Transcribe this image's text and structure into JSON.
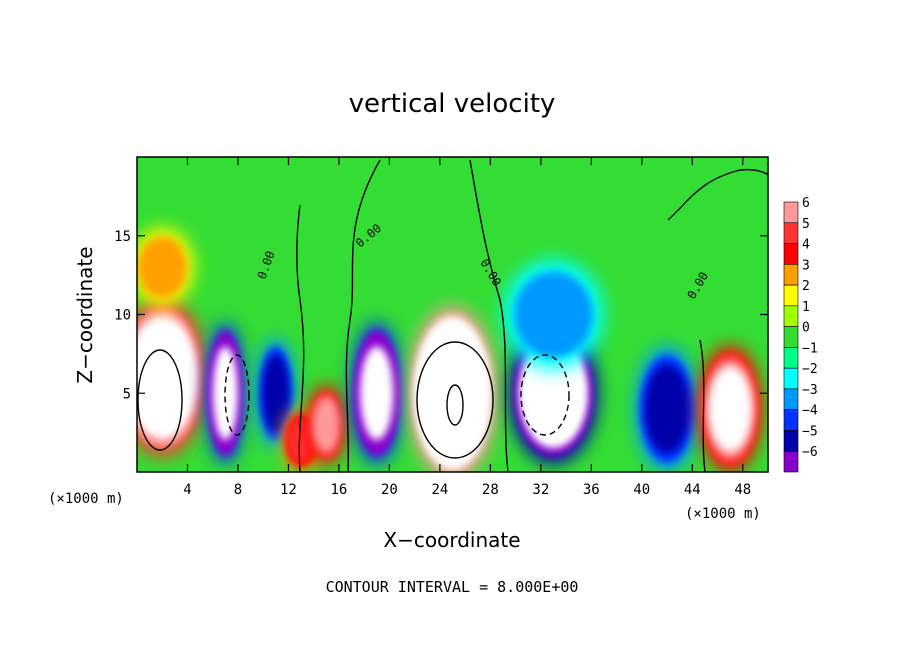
{
  "chart_data": {
    "type": "heatmap",
    "title": "vertical velocity",
    "xlabel": "X−coordinate",
    "ylabel": "Z−coordinate",
    "x_unit": "(×1000 m)",
    "y_unit": "(×1000 m)",
    "xlim": [
      0,
      50
    ],
    "ylim": [
      0,
      20
    ],
    "x_ticks": [
      4,
      8,
      12,
      16,
      20,
      24,
      28,
      32,
      36,
      40,
      44,
      48
    ],
    "y_ticks": [
      5,
      10,
      15
    ],
    "colorbar": {
      "levels": [
        6,
        5,
        4,
        3,
        2,
        1,
        0,
        -1,
        -2,
        -3,
        -4,
        -5,
        -6
      ],
      "labels": [
        "6",
        "5",
        "4",
        "3",
        "2",
        "1",
        "0",
        "−1",
        "−2",
        "−3",
        "−4",
        "−5",
        "−6"
      ],
      "colors": [
        "#ff9999",
        "#ff3333",
        "#ff0000",
        "#ffa000",
        "#ffff00",
        "#a0ff00",
        "#33dd33",
        "#00ff88",
        "#00ffff",
        "#0099ff",
        "#0033ff",
        "#0000aa",
        "#8800cc"
      ]
    },
    "cells": [
      {
        "x": 2,
        "z": 6,
        "w": 7,
        "h": 10,
        "v": 9
      },
      {
        "x": 2,
        "z": 13,
        "w": 5,
        "h": 5,
        "v": 3
      },
      {
        "x": 7,
        "z": 5,
        "w": 3,
        "h": 9,
        "v": -8
      },
      {
        "x": 11,
        "z": 5,
        "w": 3,
        "h": 7,
        "v": -5
      },
      {
        "x": 13,
        "z": 2,
        "w": 3,
        "h": 4,
        "v": 5
      },
      {
        "x": 15,
        "z": 3,
        "w": 3,
        "h": 5,
        "v": 6
      },
      {
        "x": 19,
        "z": 5,
        "w": 4,
        "h": 9,
        "v": -8
      },
      {
        "x": 25,
        "z": 5,
        "w": 7,
        "h": 11,
        "v": 10
      },
      {
        "x": 33,
        "z": 5,
        "w": 7,
        "h": 9,
        "v": -9
      },
      {
        "x": 33,
        "z": 10,
        "w": 8,
        "h": 7,
        "v": -3
      },
      {
        "x": 42,
        "z": 4,
        "w": 5,
        "h": 8,
        "v": -5
      },
      {
        "x": 47,
        "z": 4,
        "w": 5,
        "h": 8,
        "v": 7
      }
    ]
  },
  "contour_note": "CONTOUR INTERVAL = 8.000E+00",
  "contour_labels": [
    "0.00",
    "0.00",
    "0.00",
    "0.00"
  ]
}
